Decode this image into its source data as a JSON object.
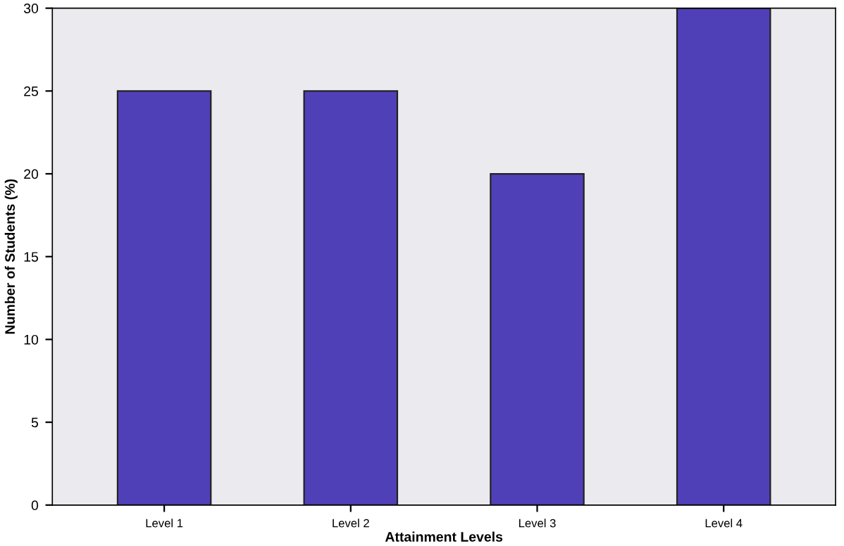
{
  "chart_data": {
    "type": "bar",
    "xlabel": "Attainment Levels",
    "ylabel": "Number of Students (%)",
    "categories": [
      "Level 1",
      "Level 2",
      "Level 3",
      "Level 4"
    ],
    "values": [
      25,
      25,
      20,
      30
    ],
    "color": "#5040b8",
    "ylim": [
      0,
      30
    ],
    "yticks": [
      0,
      5,
      10,
      15,
      20,
      25,
      30
    ],
    "grid": false,
    "legend": false
  }
}
